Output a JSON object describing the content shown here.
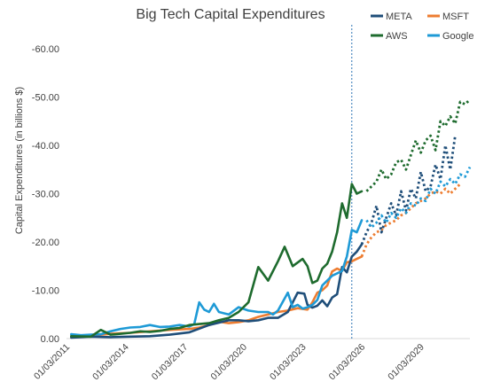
{
  "chart_data": {
    "type": "line",
    "title": "Big Tech Capital Expenditures",
    "ylabel": "Capital Expenditures (in billions $)",
    "xlabel": "",
    "ylim": [
      0,
      -60
    ],
    "y_ticks": [
      0,
      -10,
      -20,
      -30,
      -40,
      -50,
      -60
    ],
    "y_tick_labels": [
      "0.00",
      "-10.00",
      "-20.00",
      "-30.00",
      "-40.00",
      "-50.00",
      "-60.00"
    ],
    "x_range": [
      "01/03/2011",
      "06/30/2031"
    ],
    "x_ticks": [
      "01/03/2011",
      "01/03/2014",
      "01/03/2017",
      "01/03/2020",
      "01/03/2023",
      "01/03/2026",
      "01/03/2029"
    ],
    "forecast_divider": "06/30/2025",
    "grid": false,
    "legend_position": "top-right",
    "series": [
      {
        "name": "META",
        "color": "#1f4e79",
        "actual": [
          [
            "2011-03-31",
            -0.2
          ],
          [
            "2012-03-31",
            -0.4
          ],
          [
            "2013-03-31",
            -0.3
          ],
          [
            "2014-03-31",
            -0.4
          ],
          [
            "2015-03-31",
            -0.5
          ],
          [
            "2016-03-31",
            -0.8
          ],
          [
            "2017-03-31",
            -1.3
          ],
          [
            "2018-03-31",
            -2.8
          ],
          [
            "2019-03-31",
            -3.8
          ],
          [
            "2019-09-30",
            -3.8
          ],
          [
            "2020-03-31",
            -3.6
          ],
          [
            "2020-09-30",
            -3.8
          ],
          [
            "2021-03-31",
            -4.3
          ],
          [
            "2021-09-30",
            -4.3
          ],
          [
            "2022-03-31",
            -5.5
          ],
          [
            "2022-09-30",
            -9.5
          ],
          [
            "2023-01-31",
            -9.3
          ],
          [
            "2023-03-31",
            -7.0
          ],
          [
            "2023-06-30",
            -6.4
          ],
          [
            "2023-09-30",
            -6.8
          ],
          [
            "2023-12-31",
            -7.9
          ],
          [
            "2024-03-31",
            -6.7
          ],
          [
            "2024-06-30",
            -8.5
          ],
          [
            "2024-09-30",
            -9.2
          ],
          [
            "2024-12-31",
            -14.8
          ],
          [
            "2025-03-31",
            -13.7
          ],
          [
            "2025-06-30",
            -17.0
          ],
          [
            "2025-09-30",
            -18.0
          ],
          [
            "2025-12-31",
            -19.5
          ]
        ],
        "forecast": [
          [
            "2025-12-31",
            -19.5
          ],
          [
            "2026-03-31",
            -22.0
          ],
          [
            "2026-06-30",
            -24.0
          ],
          [
            "2026-09-30",
            -27.5
          ],
          [
            "2026-12-31",
            -22.0
          ],
          [
            "2027-03-31",
            -25.0
          ],
          [
            "2027-06-30",
            -28.0
          ],
          [
            "2027-09-30",
            -25.5
          ],
          [
            "2027-12-31",
            -30.5
          ],
          [
            "2028-03-31",
            -26.5
          ],
          [
            "2028-06-30",
            -31.0
          ],
          [
            "2028-09-30",
            -29.0
          ],
          [
            "2028-12-31",
            -34.5
          ],
          [
            "2029-03-31",
            -30.5
          ],
          [
            "2029-06-30",
            -31.5
          ],
          [
            "2029-09-30",
            -36.0
          ],
          [
            "2029-12-31",
            -33.0
          ],
          [
            "2030-03-31",
            -40.0
          ],
          [
            "2030-06-30",
            -35.0
          ],
          [
            "2030-09-30",
            -42.0
          ]
        ]
      },
      {
        "name": "MSFT",
        "color": "#ed7d31",
        "actual": [
          [
            "2011-03-31",
            -0.5
          ],
          [
            "2012-03-31",
            -0.6
          ],
          [
            "2013-03-31",
            -1.0
          ],
          [
            "2014-03-31",
            -1.2
          ],
          [
            "2015-03-31",
            -1.5
          ],
          [
            "2016-03-31",
            -1.8
          ],
          [
            "2017-03-31",
            -2.0
          ],
          [
            "2017-09-30",
            -2.3
          ],
          [
            "2018-03-31",
            -2.8
          ],
          [
            "2018-09-30",
            -3.5
          ],
          [
            "2019-03-31",
            -3.2
          ],
          [
            "2019-09-30",
            -3.4
          ],
          [
            "2020-03-31",
            -3.8
          ],
          [
            "2020-09-30",
            -4.5
          ],
          [
            "2021-03-31",
            -5.0
          ],
          [
            "2021-09-30",
            -5.5
          ],
          [
            "2022-03-31",
            -5.8
          ],
          [
            "2022-09-30",
            -6.3
          ],
          [
            "2023-03-31",
            -6.0
          ],
          [
            "2023-06-30",
            -7.5
          ],
          [
            "2023-09-30",
            -9.5
          ],
          [
            "2023-12-31",
            -10.0
          ],
          [
            "2024-03-31",
            -11.0
          ],
          [
            "2024-06-30",
            -13.9
          ],
          [
            "2024-09-30",
            -14.5
          ],
          [
            "2024-12-31",
            -14.0
          ],
          [
            "2025-03-31",
            -15.8
          ],
          [
            "2025-06-30",
            -16.0
          ],
          [
            "2025-09-30",
            -16.5
          ],
          [
            "2025-12-31",
            -17.0
          ]
        ],
        "forecast": [
          [
            "2025-12-31",
            -17.0
          ],
          [
            "2026-03-31",
            -19.5
          ],
          [
            "2026-06-30",
            -21.0
          ],
          [
            "2026-09-30",
            -22.0
          ],
          [
            "2026-12-31",
            -22.5
          ],
          [
            "2027-03-31",
            -23.5
          ],
          [
            "2027-06-30",
            -24.0
          ],
          [
            "2027-09-30",
            -24.5
          ],
          [
            "2027-12-31",
            -25.5
          ],
          [
            "2028-03-31",
            -26.0
          ],
          [
            "2028-06-30",
            -27.0
          ],
          [
            "2028-09-30",
            -28.0
          ],
          [
            "2028-12-31",
            -28.5
          ],
          [
            "2029-03-31",
            -29.0
          ],
          [
            "2029-06-30",
            -30.0
          ],
          [
            "2029-09-30",
            -30.5
          ],
          [
            "2029-12-31",
            -30.0
          ],
          [
            "2030-03-31",
            -31.0
          ],
          [
            "2030-06-30",
            -30.0
          ],
          [
            "2030-09-30",
            -31.0
          ],
          [
            "2030-12-31",
            -32.0
          ]
        ]
      },
      {
        "name": "AWS",
        "color": "#1e6b2e",
        "actual": [
          [
            "2011-03-31",
            -0.5
          ],
          [
            "2012-03-31",
            -0.4
          ],
          [
            "2012-09-30",
            -1.8
          ],
          [
            "2013-03-31",
            -0.8
          ],
          [
            "2013-09-30",
            -1.0
          ],
          [
            "2014-03-31",
            -1.2
          ],
          [
            "2014-09-30",
            -1.5
          ],
          [
            "2015-03-31",
            -1.4
          ],
          [
            "2015-09-30",
            -1.6
          ],
          [
            "2016-03-31",
            -2.0
          ],
          [
            "2016-09-30",
            -2.2
          ],
          [
            "2017-03-31",
            -2.8
          ],
          [
            "2017-09-30",
            -3.0
          ],
          [
            "2018-03-31",
            -3.2
          ],
          [
            "2018-09-30",
            -3.8
          ],
          [
            "2019-03-31",
            -4.3
          ],
          [
            "2019-09-30",
            -5.5
          ],
          [
            "2020-03-31",
            -7.5
          ],
          [
            "2020-09-30",
            -14.8
          ],
          [
            "2021-03-31",
            -12.0
          ],
          [
            "2021-09-30",
            -16.0
          ],
          [
            "2022-01-31",
            -19.0
          ],
          [
            "2022-06-30",
            -15.0
          ],
          [
            "2022-12-31",
            -16.5
          ],
          [
            "2023-03-31",
            -15.0
          ],
          [
            "2023-06-30",
            -11.5
          ],
          [
            "2023-09-30",
            -12.0
          ],
          [
            "2023-12-31",
            -14.5
          ],
          [
            "2024-03-31",
            -15.5
          ],
          [
            "2024-06-30",
            -18.0
          ],
          [
            "2024-09-30",
            -22.0
          ],
          [
            "2024-12-31",
            -28.0
          ],
          [
            "2025-03-31",
            -25.0
          ],
          [
            "2025-06-30",
            -32.0
          ],
          [
            "2025-09-30",
            -30.0
          ],
          [
            "2025-12-31",
            -30.5
          ]
        ],
        "forecast": [
          [
            "2026-03-31",
            -30.5
          ],
          [
            "2026-06-30",
            -31.5
          ],
          [
            "2026-09-30",
            -32.5
          ],
          [
            "2026-12-31",
            -35.0
          ],
          [
            "2027-03-31",
            -33.0
          ],
          [
            "2027-06-30",
            -34.0
          ],
          [
            "2027-09-30",
            -36.5
          ],
          [
            "2027-12-31",
            -37.0
          ],
          [
            "2028-03-31",
            -35.0
          ],
          [
            "2028-06-30",
            -38.0
          ],
          [
            "2028-09-30",
            -41.0
          ],
          [
            "2028-12-31",
            -38.5
          ],
          [
            "2029-03-31",
            -41.0
          ],
          [
            "2029-06-30",
            -42.0
          ],
          [
            "2029-09-30",
            -39.0
          ],
          [
            "2029-12-31",
            -45.0
          ],
          [
            "2030-03-31",
            -44.0
          ],
          [
            "2030-06-30",
            -46.0
          ],
          [
            "2030-09-30",
            -44.5
          ],
          [
            "2030-12-31",
            -49.0
          ],
          [
            "2031-03-31",
            -48.5
          ],
          [
            "2031-06-30",
            -49.5
          ]
        ]
      },
      {
        "name": "Google",
        "color": "#1e9ad6",
        "actual": [
          [
            "2011-03-31",
            -0.9
          ],
          [
            "2011-09-30",
            -0.7
          ],
          [
            "2012-03-31",
            -0.8
          ],
          [
            "2012-09-30",
            -0.9
          ],
          [
            "2013-03-31",
            -1.5
          ],
          [
            "2013-09-30",
            -2.0
          ],
          [
            "2014-03-31",
            -2.3
          ],
          [
            "2014-09-30",
            -2.4
          ],
          [
            "2015-03-31",
            -2.8
          ],
          [
            "2015-09-30",
            -2.4
          ],
          [
            "2016-03-31",
            -2.5
          ],
          [
            "2016-09-30",
            -2.8
          ],
          [
            "2017-03-31",
            -2.5
          ],
          [
            "2017-06-30",
            -3.0
          ],
          [
            "2017-09-30",
            -7.5
          ],
          [
            "2017-12-31",
            -6.0
          ],
          [
            "2018-03-31",
            -5.5
          ],
          [
            "2018-06-30",
            -7.2
          ],
          [
            "2018-09-30",
            -5.5
          ],
          [
            "2019-03-31",
            -5.0
          ],
          [
            "2019-09-30",
            -6.5
          ],
          [
            "2020-03-31",
            -5.8
          ],
          [
            "2020-09-30",
            -5.5
          ],
          [
            "2021-03-31",
            -5.5
          ],
          [
            "2021-06-30",
            -5.0
          ],
          [
            "2021-09-30",
            -5.8
          ],
          [
            "2022-03-31",
            -9.5
          ],
          [
            "2022-06-30",
            -6.5
          ],
          [
            "2022-09-30",
            -7.0
          ],
          [
            "2022-12-31",
            -6.2
          ],
          [
            "2023-03-31",
            -6.5
          ],
          [
            "2023-06-30",
            -7.0
          ],
          [
            "2023-09-30",
            -8.0
          ],
          [
            "2023-12-31",
            -11.0
          ],
          [
            "2024-03-31",
            -12.0
          ],
          [
            "2024-06-30",
            -13.0
          ],
          [
            "2024-09-30",
            -13.5
          ],
          [
            "2024-12-31",
            -14.0
          ],
          [
            "2025-03-31",
            -17.0
          ],
          [
            "2025-06-30",
            -22.5
          ],
          [
            "2025-09-30",
            -22.0
          ],
          [
            "2025-12-31",
            -24.5
          ]
        ],
        "forecast": [
          [
            "2026-03-31",
            -24.5
          ],
          [
            "2026-06-30",
            -23.0
          ],
          [
            "2026-09-30",
            -24.0
          ],
          [
            "2026-12-31",
            -25.5
          ],
          [
            "2027-03-31",
            -24.0
          ],
          [
            "2027-06-30",
            -26.0
          ],
          [
            "2027-09-30",
            -25.0
          ],
          [
            "2027-12-31",
            -27.0
          ],
          [
            "2028-03-31",
            -26.0
          ],
          [
            "2028-06-30",
            -28.0
          ],
          [
            "2028-09-30",
            -27.5
          ],
          [
            "2028-12-31",
            -29.0
          ],
          [
            "2029-03-31",
            -28.5
          ],
          [
            "2029-06-30",
            -31.0
          ],
          [
            "2029-09-30",
            -30.0
          ],
          [
            "2029-12-31",
            -32.5
          ],
          [
            "2030-03-31",
            -31.5
          ],
          [
            "2030-06-30",
            -33.0
          ],
          [
            "2030-09-30",
            -32.0
          ],
          [
            "2030-12-31",
            -34.0
          ],
          [
            "2031-03-31",
            -33.5
          ],
          [
            "2031-06-30",
            -35.5
          ]
        ]
      }
    ]
  }
}
